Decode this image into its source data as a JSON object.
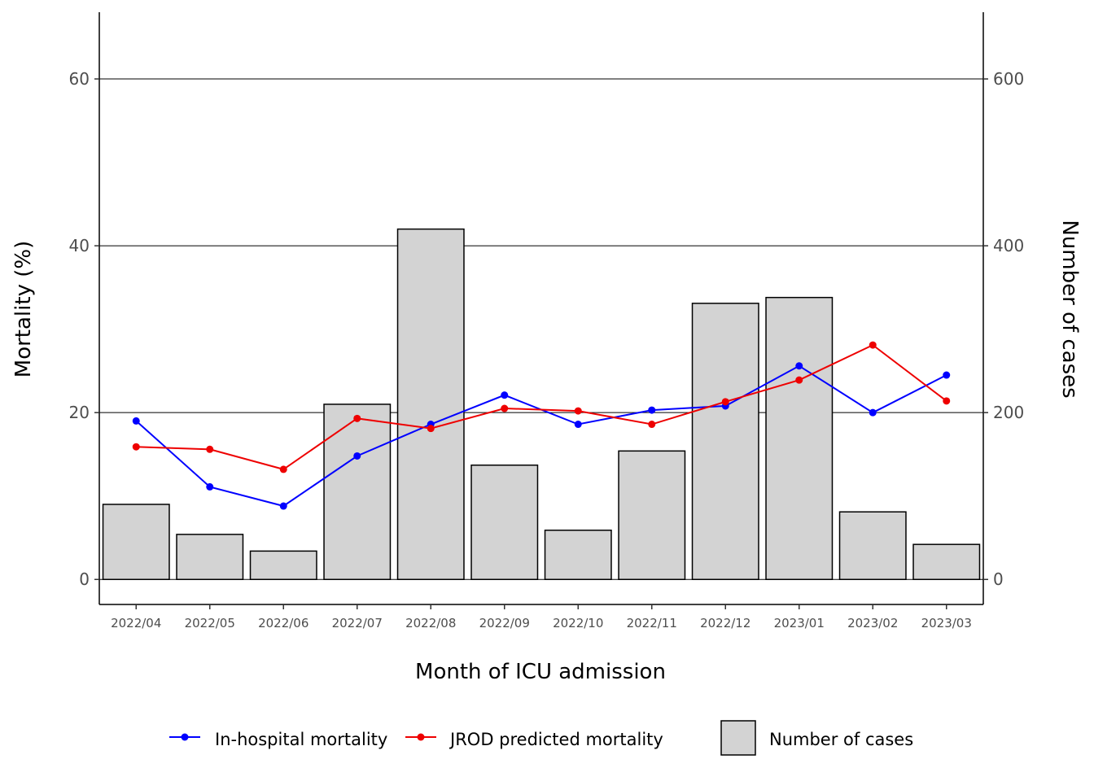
{
  "chart_data": {
    "type": "bar+line",
    "xlabel": "Month of ICU admission",
    "ylabel_left": "Mortality (%)",
    "ylabel_right": "Number of cases",
    "categories": [
      "2022/04",
      "2022/05",
      "2022/06",
      "2022/07",
      "2022/08",
      "2022/09",
      "2022/10",
      "2022/11",
      "2022/12",
      "2023/01",
      "2023/02",
      "2023/03"
    ],
    "ylim_left": [
      -3,
      68
    ],
    "ylim_right": [
      -30,
      680
    ],
    "yticks_left": [
      0,
      20,
      40,
      60
    ],
    "yticks_right": [
      0,
      200,
      400,
      600
    ],
    "grid": "horizontal major lines at 20, 40, 60",
    "bars": {
      "name": "Number of cases",
      "color": "#d3d3d3",
      "values": [
        90,
        54,
        34,
        210,
        420,
        137,
        59,
        154,
        331,
        338,
        81,
        42
      ]
    },
    "series": [
      {
        "name": "In-hospital mortality",
        "color": "#0000ff",
        "values": [
          19.0,
          11.1,
          8.8,
          14.8,
          18.6,
          22.1,
          18.6,
          20.3,
          20.8,
          25.6,
          20.0,
          24.5
        ]
      },
      {
        "name": "JROD predicted mortality",
        "color": "#ee0000",
        "values": [
          15.9,
          15.6,
          13.2,
          19.3,
          18.1,
          20.5,
          20.2,
          18.6,
          21.3,
          23.9,
          28.1,
          21.4
        ]
      }
    ],
    "legend": {
      "position": "bottom"
    }
  }
}
